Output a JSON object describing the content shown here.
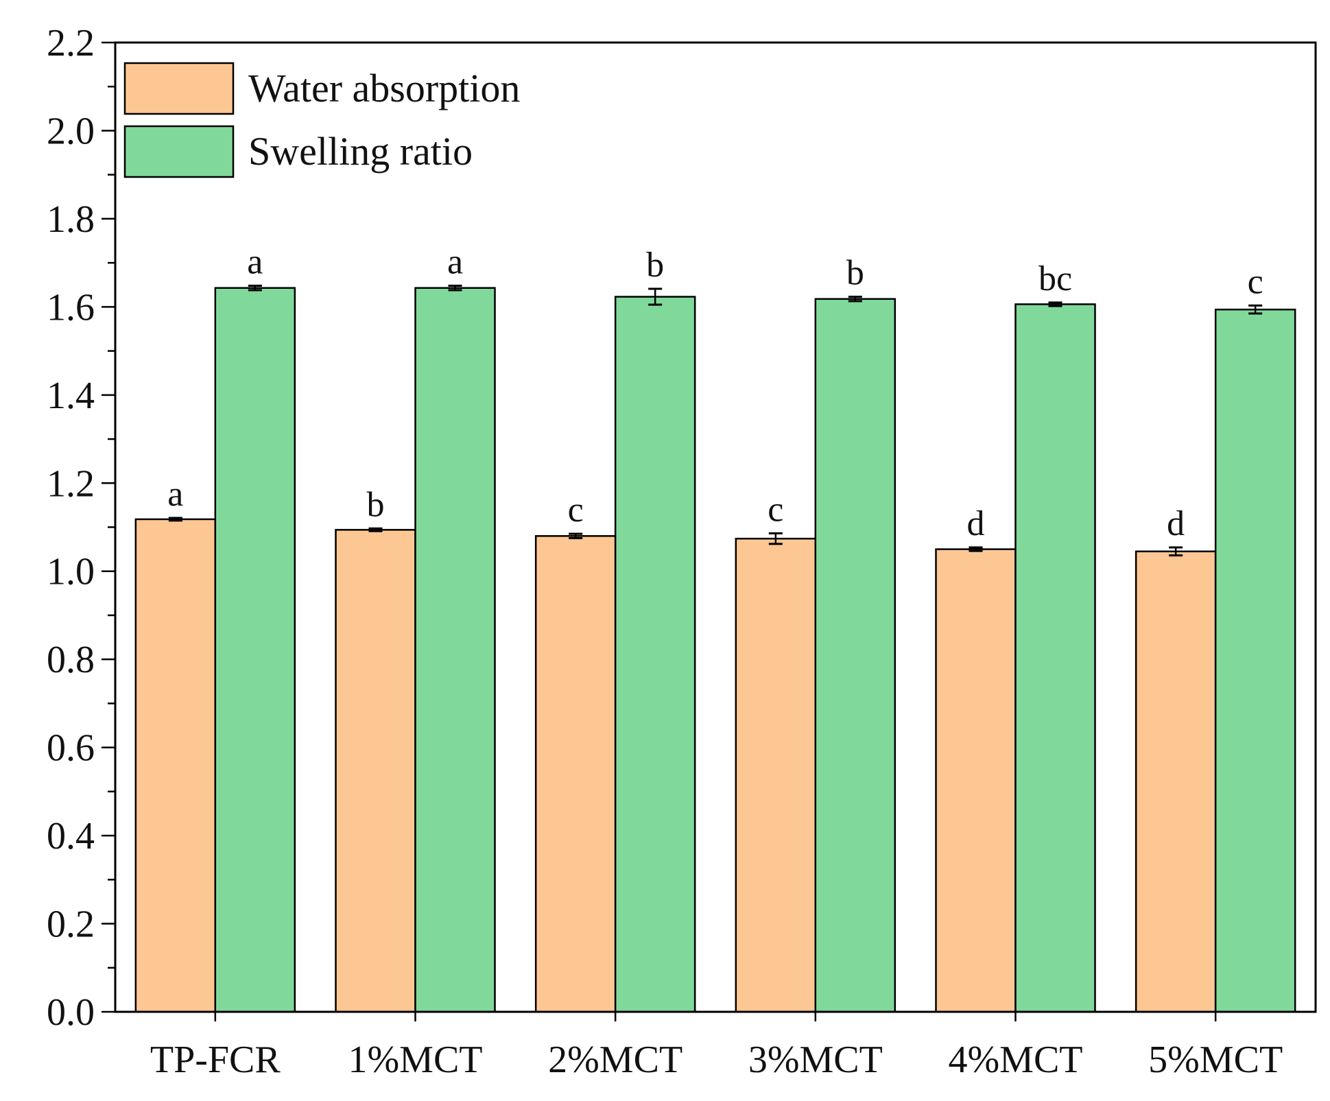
{
  "chart_data": {
    "type": "bar",
    "title": "",
    "xlabel": "",
    "ylabel": "",
    "categories": [
      "TP-FCR",
      "1%MCT",
      "2%MCT",
      "3%MCT",
      "4%MCT",
      "5%MCT"
    ],
    "ylim": [
      0.0,
      2.2
    ],
    "yticks": [
      "0.0",
      "0.2",
      "0.4",
      "0.6",
      "0.8",
      "1.0",
      "1.2",
      "1.4",
      "1.6",
      "1.8",
      "2.0",
      "2.2"
    ],
    "yminor_step": 0.1,
    "legend_position": "top-left",
    "series": [
      {
        "name": "Water absorption",
        "color": "#FDC794",
        "values": [
          1.118,
          1.094,
          1.08,
          1.074,
          1.05,
          1.045
        ],
        "errors": [
          0.003,
          0.003,
          0.005,
          0.012,
          0.004,
          0.009
        ],
        "letters": [
          "a",
          "b",
          "c",
          "c",
          "d",
          "d"
        ]
      },
      {
        "name": "Swelling ratio",
        "color": "#80D99B",
        "values": [
          1.643,
          1.643,
          1.623,
          1.618,
          1.606,
          1.594
        ],
        "errors": [
          0.005,
          0.005,
          0.018,
          0.005,
          0.004,
          0.009
        ],
        "letters": [
          "a",
          "a",
          "b",
          "b",
          "bc",
          "c"
        ]
      }
    ]
  }
}
